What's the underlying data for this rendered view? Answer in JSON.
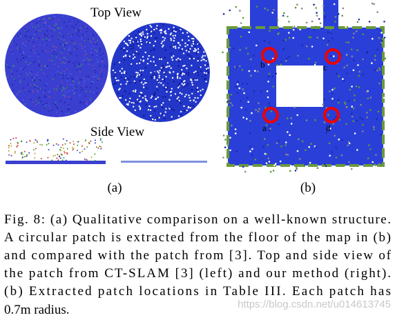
{
  "figure": {
    "panel_a": {
      "top_label": "Top View",
      "side_label": "Side View",
      "caption": "(a)"
    },
    "panel_b": {
      "caption": "(b)",
      "markers": [
        "b",
        "c",
        "a",
        "d"
      ]
    },
    "caption_lines": [
      "Fig. 8: (a) Qualitative comparison on a well-known structure.",
      "A circular patch is extracted from the floor of the map in (b)",
      "and compared with the patch from [3]. Top and side view of",
      "the patch from CT-SLAM [3] (left) and our method (right).",
      "(b) Extracted patch locations in Table III. Each patch has",
      "0.7m radius."
    ],
    "watermark": "https://blog.csdn.net/u014613745"
  }
}
